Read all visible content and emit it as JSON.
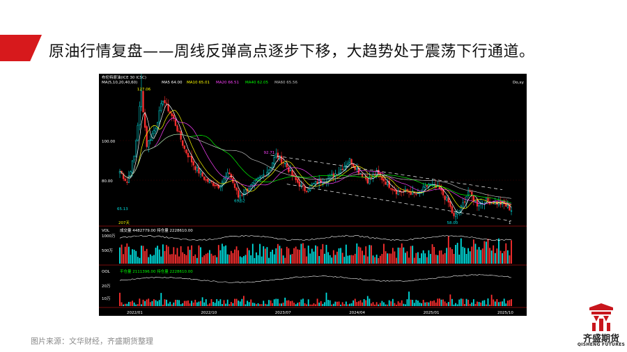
{
  "slide": {
    "title": "原油行情复盘——周线反弹高点逐步下移，大趋势处于震荡下行通道。",
    "source": "图片来源：文华财经，齐盛期货整理"
  },
  "logo": {
    "name": "齐盛期货",
    "subtitle": "QISHENG FUTURES",
    "glyph": "齊"
  },
  "colors": {
    "accent_red": "#d7191c",
    "bull": "#00e0e0",
    "bear": "#ff3030",
    "ma5": "#ffffff",
    "ma10": "#ffff00",
    "ma20": "#ff40ff",
    "ma40": "#00ff00",
    "ma60": "#c0c0c0"
  },
  "terminal": {
    "header": "布伦特原油(ICE 30 ICSC)",
    "ma_row": {
      "label": "MA(5,10,20,40,60)",
      "ma5": "MA5 64.00",
      "ma10": "MA10 65.01",
      "ma20": "MA20 66.51",
      "ma40": "MA40 62.05",
      "ma60": "MA60 65.56"
    },
    "corner_right": "Do,xy",
    "price_labels": {
      "p100": "100.00",
      "p80": "80.00"
    },
    "annotations": {
      "high": "127.06",
      "mid_high": "92.71",
      "low_2022": "65.13",
      "low_2023": "69.52",
      "low_2025": "58.00",
      "cursor": "207天",
      "last": "1"
    },
    "volume_panel": {
      "header": "成交量 4482779.00 持仓量 2228610.00",
      "left_label": "VOL",
      "scale_top": "1000万",
      "scale_mid": "500万"
    },
    "oi_panel": {
      "header": "平仓量 2111396.00 持仓量 2228610.00",
      "left_label": "OOL",
      "scale_a": "20万",
      "scale_b": "10万"
    },
    "x_axis": [
      "2022/01",
      "2022/10",
      "2023/07",
      "2024/04",
      "2025/01",
      "2025/10"
    ]
  },
  "chart_data": {
    "type": "candlestick",
    "title": "布伦特原油(ICE 30 ICSC)",
    "xlabel": "",
    "ylabel": "",
    "x_ticks": [
      "2022/01",
      "2022/10",
      "2023/07",
      "2024/04",
      "2025/01",
      "2025/10"
    ],
    "ylim": [
      55,
      130
    ],
    "close_keypoints": [
      {
        "week": 0,
        "close": 84
      },
      {
        "week": 4,
        "close": 78
      },
      {
        "week": 8,
        "close": 92
      },
      {
        "week": 12,
        "close": 127
      },
      {
        "week": 15,
        "close": 98
      },
      {
        "week": 20,
        "close": 108
      },
      {
        "week": 24,
        "close": 123
      },
      {
        "week": 30,
        "close": 112
      },
      {
        "week": 36,
        "close": 96
      },
      {
        "week": 42,
        "close": 86
      },
      {
        "week": 48,
        "close": 79
      },
      {
        "week": 55,
        "close": 76
      },
      {
        "week": 61,
        "close": 83
      },
      {
        "week": 66,
        "close": 70
      },
      {
        "week": 72,
        "close": 75
      },
      {
        "week": 78,
        "close": 80
      },
      {
        "week": 83,
        "close": 85
      },
      {
        "week": 87,
        "close": 92.71
      },
      {
        "week": 92,
        "close": 88
      },
      {
        "week": 97,
        "close": 80
      },
      {
        "week": 103,
        "close": 74
      },
      {
        "week": 110,
        "close": 78
      },
      {
        "week": 116,
        "close": 80
      },
      {
        "week": 122,
        "close": 84
      },
      {
        "week": 128,
        "close": 90
      },
      {
        "week": 133,
        "close": 84
      },
      {
        "week": 138,
        "close": 79
      },
      {
        "week": 143,
        "close": 83
      },
      {
        "week": 148,
        "close": 78
      },
      {
        "week": 154,
        "close": 73
      },
      {
        "week": 160,
        "close": 73
      },
      {
        "week": 166,
        "close": 71
      },
      {
        "week": 172,
        "close": 77
      },
      {
        "week": 178,
        "close": 74
      },
      {
        "week": 183,
        "close": 67
      },
      {
        "week": 186,
        "close": 59
      },
      {
        "week": 190,
        "close": 64
      },
      {
        "week": 194,
        "close": 73
      },
      {
        "week": 199,
        "close": 66
      },
      {
        "week": 204,
        "close": 68
      },
      {
        "week": 209,
        "close": 67
      },
      {
        "week": 214,
        "close": 66
      },
      {
        "week": 218,
        "close": 63
      }
    ],
    "channel": {
      "upper": [
        {
          "week": 84,
          "price": 92.71
        },
        {
          "week": 213,
          "price": 74
        }
      ],
      "lower": [
        {
          "week": 93,
          "price": 77
        },
        {
          "week": 218,
          "price": 57
        }
      ]
    }
  }
}
